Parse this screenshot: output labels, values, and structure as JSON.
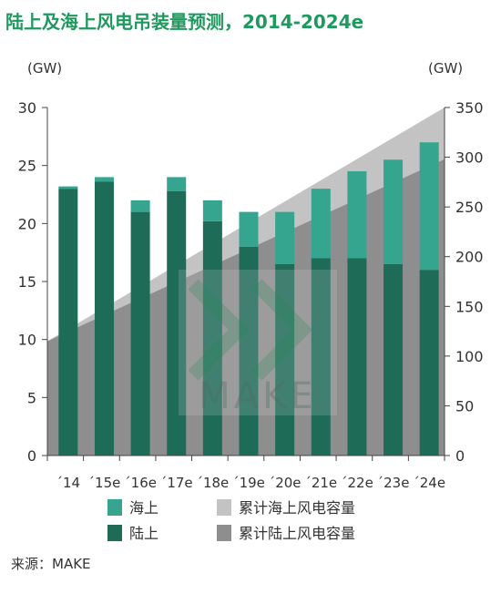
{
  "chart_data": {
    "type": "bar",
    "title": "陆上及海上风电吊装量预测，2014-2024e",
    "categories": [
      "´14",
      "´15e",
      "´16e",
      "´17e",
      "´18e",
      "´19e",
      "´20e",
      "´21e",
      "´22e",
      "´23e",
      "´24e"
    ],
    "stacked": true,
    "series": [
      {
        "name": "陆上",
        "color": "#1e6b58",
        "values": [
          23,
          23.6,
          21,
          22.8,
          20.2,
          18,
          16.5,
          17,
          17,
          16.5,
          16
        ]
      },
      {
        "name": "海上",
        "color": "#35a590",
        "values": [
          0.2,
          0.4,
          1,
          1.2,
          1.8,
          3,
          4.5,
          6,
          7.5,
          9,
          11
        ]
      }
    ],
    "cumulative_series": [
      {
        "name": "累计海上风电容量",
        "color": "#c3c3c3",
        "start": 115,
        "end": 350
      },
      {
        "name": "累计陆上风电容量",
        "color": "#8e8e8e",
        "start": 115,
        "end": 298
      }
    ],
    "ylabel_left": "(GW)",
    "ylabel_right": "(GW)",
    "ylim_left": [
      0,
      30
    ],
    "yticks_left": [
      0,
      5,
      10,
      15,
      20,
      25,
      30
    ],
    "ylim_right": [
      0,
      350
    ],
    "yticks_right": [
      0,
      50,
      100,
      150,
      200,
      250,
      300,
      350
    ],
    "legend_position": "bottom",
    "watermark": "MAKE"
  },
  "source": "来源：MAKE"
}
